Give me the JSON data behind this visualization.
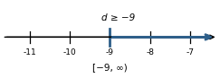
{
  "title": "d ≥ −9",
  "interval_notation": "[−9, ∞)",
  "number_line_min": -11.7,
  "number_line_max": -6.3,
  "tick_positions": [
    -11,
    -10,
    -9,
    -8,
    -7
  ],
  "tick_labels": [
    "-11",
    "-10",
    "-9",
    "-8",
    "-7"
  ],
  "solution_point": -9,
  "line_color": "#2e5f8a",
  "axis_color": "#000000",
  "title_fontsize": 7.5,
  "tick_fontsize": 6.5,
  "interval_fontsize": 7.5,
  "bracket_color": "#2e5f8a",
  "background_color": "#ffffff"
}
